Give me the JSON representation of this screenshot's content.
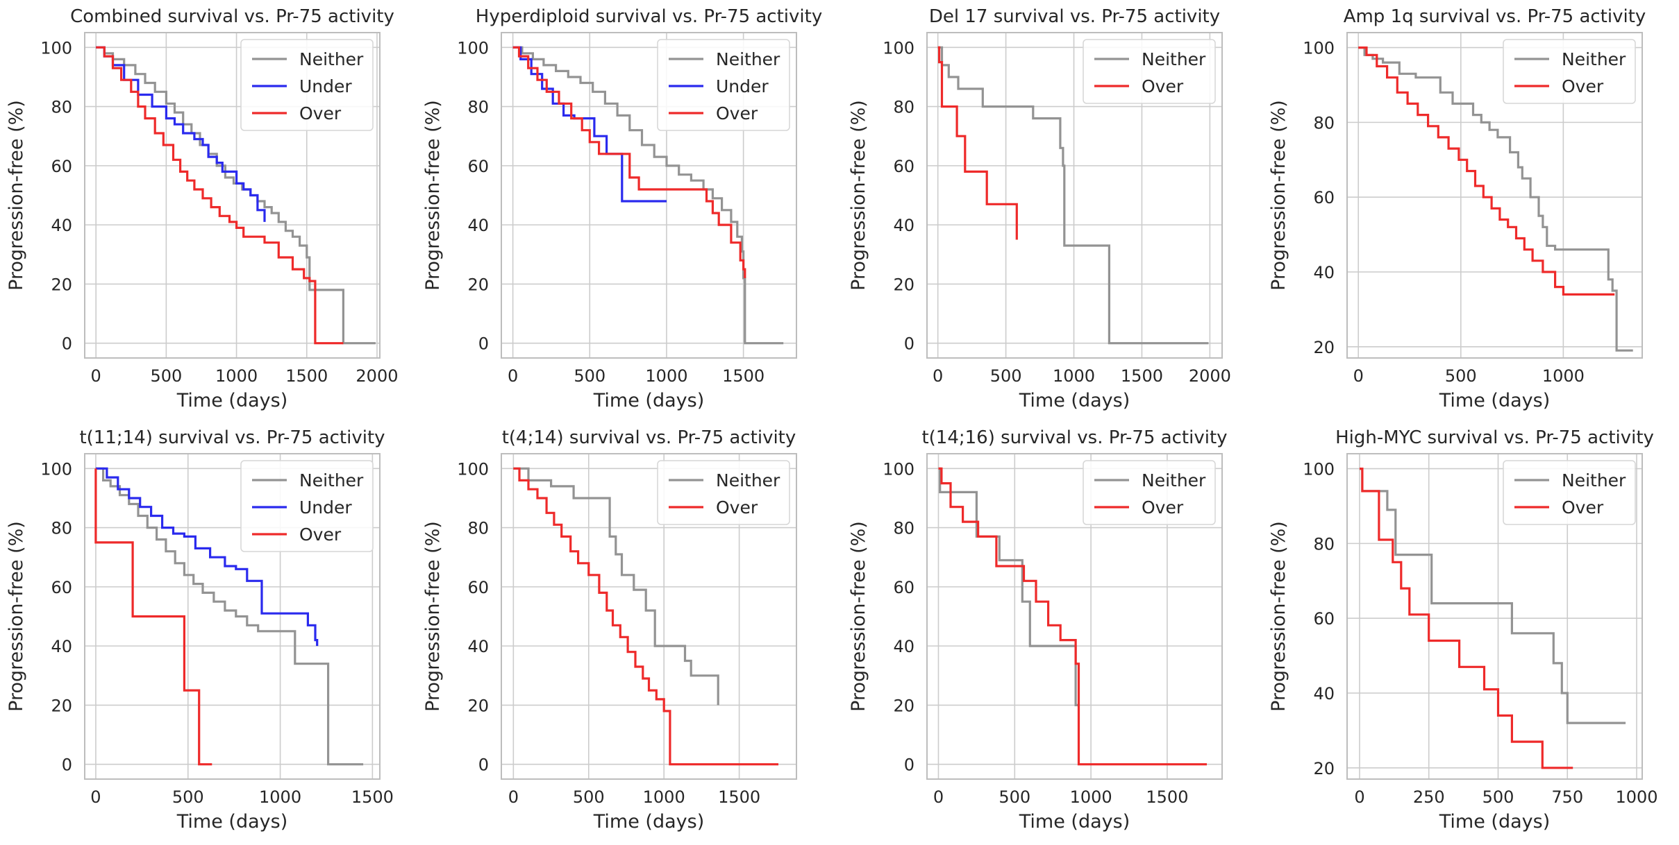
{
  "colors": {
    "Neither": "#939393",
    "Under": "#2a2aee",
    "Over": "#ee2a2a",
    "grid": "#cccccc",
    "frame": "#bdbdbd",
    "text": "#262626"
  },
  "chart_data": [
    {
      "type": "line",
      "title": "Combined survival vs. Pr-75 activity",
      "xlabel": "Time (days)",
      "ylabel": "Progression-free (%)",
      "xlim": [
        -80,
        2020
      ],
      "ylim": [
        -5,
        105
      ],
      "xticks": [
        0,
        500,
        1000,
        1500,
        2000
      ],
      "yticks": [
        0,
        20,
        40,
        60,
        80,
        100
      ],
      "legend": [
        "Neither",
        "Under",
        "Over"
      ],
      "series": [
        {
          "name": "Neither",
          "x": [
            0,
            60,
            120,
            200,
            280,
            350,
            420,
            500,
            560,
            620,
            680,
            740,
            800,
            860,
            920,
            980,
            1040,
            1100,
            1150,
            1200,
            1250,
            1300,
            1350,
            1400,
            1450,
            1500,
            1520,
            1760,
            1760,
            1990
          ],
          "y": [
            100,
            98,
            96,
            94,
            91,
            88,
            85,
            81,
            78,
            74,
            71,
            67,
            64,
            60,
            56,
            54,
            52,
            50,
            48,
            46,
            44,
            41,
            38,
            36,
            33,
            29,
            18,
            18,
            0,
            0
          ]
        },
        {
          "name": "Under",
          "x": [
            0,
            60,
            120,
            200,
            300,
            400,
            500,
            560,
            620,
            700,
            760,
            800,
            860,
            900,
            1000,
            1050,
            1100,
            1150,
            1200,
            1200
          ],
          "y": [
            100,
            97,
            94,
            89,
            84,
            80,
            76,
            74,
            71,
            69,
            67,
            63,
            61,
            58,
            54,
            52,
            50,
            45,
            41,
            44
          ]
        },
        {
          "name": "Over",
          "x": [
            0,
            60,
            120,
            180,
            250,
            300,
            350,
            420,
            480,
            550,
            600,
            650,
            700,
            760,
            820,
            880,
            950,
            1000,
            1050,
            1100,
            1200,
            1300,
            1400,
            1480,
            1520,
            1560,
            1760
          ],
          "y": [
            100,
            97,
            93,
            89,
            85,
            80,
            76,
            71,
            67,
            62,
            58,
            55,
            52,
            49,
            46,
            43,
            41,
            39,
            36,
            36,
            34,
            29,
            25,
            22,
            21,
            0,
            0
          ]
        }
      ]
    },
    {
      "type": "line",
      "title": "Hyperdiploid survival vs. Pr-75 activity",
      "xlabel": "Time (days)",
      "ylabel": "Progression-free (%)",
      "xlim": [
        -75,
        1845
      ],
      "ylim": [
        -5,
        105
      ],
      "xticks": [
        0,
        500,
        1000,
        1500
      ],
      "yticks": [
        0,
        20,
        40,
        60,
        80,
        100
      ],
      "legend": [
        "Neither",
        "Under",
        "Over"
      ],
      "series": [
        {
          "name": "Neither",
          "x": [
            0,
            60,
            130,
            200,
            280,
            360,
            440,
            520,
            600,
            680,
            760,
            840,
            920,
            1000,
            1080,
            1160,
            1240,
            1300,
            1360,
            1420,
            1460,
            1490,
            1500,
            1510,
            1760
          ],
          "y": [
            100,
            98,
            96,
            94,
            92,
            90,
            88,
            85,
            81,
            77,
            72,
            67,
            63,
            60,
            57,
            55,
            52,
            49,
            45,
            41,
            36,
            31,
            22,
            0,
            0
          ]
        },
        {
          "name": "Under",
          "x": [
            0,
            50,
            120,
            190,
            260,
            330,
            400,
            460,
            530,
            610,
            710,
            780,
            1000
          ],
          "y": [
            100,
            96,
            91,
            86,
            81,
            77,
            76,
            76,
            70,
            64,
            48,
            48,
            48
          ]
        },
        {
          "name": "Over",
          "x": [
            0,
            40,
            100,
            160,
            220,
            300,
            380,
            450,
            500,
            560,
            620,
            700,
            760,
            820,
            1000,
            1100,
            1220,
            1260,
            1300,
            1340,
            1420,
            1480,
            1500,
            1510
          ],
          "y": [
            100,
            97,
            93,
            89,
            85,
            81,
            76,
            72,
            68,
            64,
            64,
            64,
            56,
            52,
            52,
            52,
            52,
            48,
            44,
            40,
            34,
            28,
            25,
            22
          ]
        }
      ]
    },
    {
      "type": "line",
      "title": "Del 17 survival vs. Pr-75 activity",
      "xlabel": "Time (days)",
      "ylabel": "Progression-free (%)",
      "xlim": [
        -80,
        2090
      ],
      "ylim": [
        -5,
        105
      ],
      "xticks": [
        0,
        500,
        1000,
        1500,
        2000
      ],
      "yticks": [
        0,
        20,
        40,
        60,
        80,
        100
      ],
      "legend": [
        "Neither",
        "Over"
      ],
      "series": [
        {
          "name": "Neither",
          "x": [
            0,
            30,
            80,
            150,
            330,
            500,
            650,
            700,
            900,
            920,
            930,
            1250,
            1260,
            1990
          ],
          "y": [
            100,
            94,
            90,
            86,
            80,
            80,
            80,
            76,
            66,
            60,
            33,
            33,
            0,
            0
          ]
        },
        {
          "name": "Over",
          "x": [
            0,
            10,
            30,
            140,
            200,
            360,
            440,
            580,
            580
          ],
          "y": [
            100,
            95,
            80,
            70,
            58,
            47,
            47,
            47,
            35
          ]
        }
      ]
    },
    {
      "type": "line",
      "title": "Amp 1q survival vs. Pr-75 activity",
      "xlabel": "Time (days)",
      "ylabel": "Progression-free (%)",
      "xlim": [
        -55,
        1385
      ],
      "ylim": [
        17,
        104
      ],
      "xticks": [
        0,
        500,
        1000
      ],
      "yticks": [
        20,
        40,
        60,
        80,
        100
      ],
      "legend": [
        "Neither",
        "Over"
      ],
      "series": [
        {
          "name": "Neither",
          "x": [
            0,
            30,
            70,
            120,
            200,
            280,
            360,
            400,
            460,
            560,
            600,
            640,
            680,
            740,
            780,
            800,
            840,
            880,
            900,
            920,
            960,
            1000,
            1100,
            1220,
            1240,
            1260,
            1280,
            1340
          ],
          "y": [
            100,
            98,
            97,
            96,
            93,
            92,
            92,
            88,
            85,
            82,
            80,
            78,
            76,
            72,
            68,
            65,
            60,
            55,
            52,
            47,
            46,
            46,
            46,
            38,
            35,
            19,
            19,
            19
          ]
        },
        {
          "name": "Over",
          "x": [
            0,
            40,
            90,
            140,
            190,
            240,
            290,
            340,
            390,
            440,
            490,
            530,
            570,
            610,
            650,
            690,
            730,
            770,
            810,
            850,
            900,
            960,
            1000,
            1100,
            1200,
            1250
          ],
          "y": [
            100,
            98,
            95,
            92,
            88,
            85,
            82,
            79,
            76,
            73,
            70,
            67,
            63,
            60,
            57,
            54,
            52,
            49,
            46,
            43,
            40,
            36,
            34,
            34,
            34,
            34
          ]
        }
      ]
    },
    {
      "type": "line",
      "title": "t(11;14) survival vs. Pr-75 activity",
      "xlabel": "Time (days)",
      "ylabel": "Progression-free (%)",
      "xlim": [
        -60,
        1540
      ],
      "ylim": [
        -5,
        105
      ],
      "xticks": [
        0,
        500,
        1000,
        1500
      ],
      "yticks": [
        0,
        20,
        40,
        60,
        80,
        100
      ],
      "legend": [
        "Neither",
        "Under",
        "Over"
      ],
      "series": [
        {
          "name": "Neither",
          "x": [
            0,
            40,
            80,
            130,
            180,
            230,
            280,
            330,
            380,
            430,
            480,
            530,
            580,
            640,
            700,
            760,
            820,
            880,
            940,
            1000,
            1060,
            1080,
            1150,
            1250,
            1260,
            1450
          ],
          "y": [
            100,
            96,
            94,
            91,
            88,
            84,
            80,
            76,
            72,
            68,
            64,
            61,
            58,
            55,
            52,
            50,
            47,
            45,
            45,
            45,
            45,
            34,
            34,
            34,
            0,
            0
          ]
        },
        {
          "name": "Under",
          "x": [
            0,
            60,
            120,
            180,
            240,
            300,
            360,
            420,
            480,
            540,
            620,
            700,
            760,
            820,
            860,
            900,
            960,
            1000,
            1100,
            1150,
            1190,
            1200
          ],
          "y": [
            100,
            97,
            93,
            90,
            87,
            84,
            80,
            78,
            77,
            73,
            70,
            67,
            66,
            62,
            62,
            51,
            51,
            51,
            51,
            47,
            42,
            40
          ]
        },
        {
          "name": "Over",
          "x": [
            0,
            0,
            200,
            200,
            480,
            480,
            560,
            560,
            630
          ],
          "y": [
            100,
            75,
            75,
            50,
            50,
            25,
            25,
            0,
            0
          ]
        }
      ]
    },
    {
      "type": "line",
      "title": "t(4;14) survival vs. Pr-75 activity",
      "xlabel": "Time (days)",
      "ylabel": "Progression-free (%)",
      "xlim": [
        -80,
        1880
      ],
      "ylim": [
        -5,
        105
      ],
      "xticks": [
        0,
        500,
        1000,
        1500
      ],
      "yticks": [
        0,
        20,
        40,
        60,
        80,
        100
      ],
      "legend": [
        "Neither",
        "Over"
      ],
      "series": [
        {
          "name": "Neither",
          "x": [
            0,
            100,
            250,
            400,
            600,
            640,
            680,
            720,
            800,
            880,
            940,
            1100,
            1140,
            1180,
            1360
          ],
          "y": [
            100,
            96,
            94,
            90,
            90,
            77,
            71,
            64,
            59,
            52,
            40,
            40,
            35,
            30,
            20
          ]
        },
        {
          "name": "Over",
          "x": [
            0,
            40,
            100,
            160,
            220,
            270,
            320,
            380,
            430,
            500,
            570,
            620,
            660,
            710,
            760,
            810,
            860,
            900,
            950,
            1000,
            1040,
            1120,
            1760
          ],
          "y": [
            100,
            96,
            93,
            90,
            85,
            81,
            77,
            72,
            68,
            64,
            58,
            52,
            47,
            43,
            38,
            33,
            29,
            25,
            22,
            18,
            0,
            0,
            0
          ]
        }
      ]
    },
    {
      "type": "line",
      "title": "t(14;16) survival vs. Pr-75 activity",
      "xlabel": "Time (days)",
      "ylabel": "Progression-free (%)",
      "xlim": [
        -75,
        1860
      ],
      "ylim": [
        -5,
        105
      ],
      "xticks": [
        0,
        500,
        1000,
        1500
      ],
      "yticks": [
        0,
        20,
        40,
        60,
        80,
        100
      ],
      "legend": [
        "Neither",
        "Over"
      ],
      "series": [
        {
          "name": "Neither",
          "x": [
            0,
            10,
            80,
            250,
            400,
            460,
            550,
            600,
            880,
            900,
            920
          ],
          "y": [
            100,
            92,
            92,
            77,
            69,
            69,
            55,
            40,
            40,
            20,
            20
          ]
        },
        {
          "name": "Over",
          "x": [
            0,
            20,
            80,
            160,
            260,
            380,
            560,
            640,
            720,
            800,
            900,
            920,
            1760
          ],
          "y": [
            100,
            95,
            87,
            82,
            77,
            67,
            62,
            55,
            47,
            42,
            34,
            0,
            0
          ]
        }
      ]
    },
    {
      "type": "line",
      "title": "High-MYC survival vs. Pr-75 activity",
      "xlabel": "Time (days)",
      "ylabel": "Progression-free (%)",
      "xlim": [
        -45,
        1020
      ],
      "ylim": [
        17,
        104
      ],
      "xticks": [
        0,
        250,
        500,
        750,
        1000
      ],
      "yticks": [
        20,
        40,
        60,
        80,
        100
      ],
      "legend": [
        "Neither",
        "Over"
      ],
      "series": [
        {
          "name": "Neither",
          "x": [
            0,
            10,
            70,
            100,
            130,
            230,
            260,
            450,
            550,
            700,
            730,
            750,
            960
          ],
          "y": [
            100,
            94,
            94,
            89,
            77,
            77,
            64,
            64,
            56,
            48,
            40,
            32,
            32
          ]
        },
        {
          "name": "Over",
          "x": [
            0,
            10,
            70,
            120,
            150,
            180,
            250,
            360,
            450,
            500,
            550,
            660,
            770
          ],
          "y": [
            100,
            94,
            81,
            75,
            68,
            61,
            54,
            47,
            41,
            34,
            27,
            20,
            20
          ]
        }
      ]
    }
  ]
}
